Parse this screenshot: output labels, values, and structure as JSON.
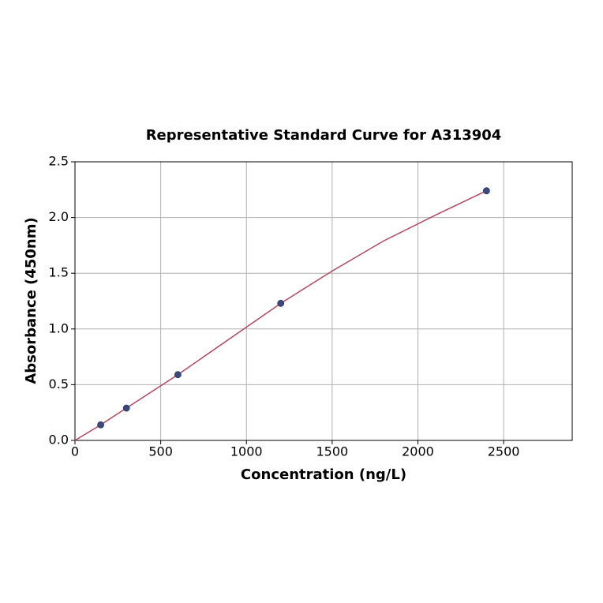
{
  "chart_data": {
    "type": "scatter",
    "title": "Representative Standard Curve for A313904",
    "x_label": "Concentration (ng/L)",
    "y_label": "Absorbance (450nm)",
    "xlim": [
      0,
      2900
    ],
    "ylim": [
      0,
      2.5
    ],
    "xticks": [
      0,
      500,
      1000,
      1500,
      2000,
      2500
    ],
    "yticks": [
      {
        "value": 0,
        "label": "0.0"
      },
      0.5,
      {
        "value": 1,
        "label": "1.0"
      },
      1.5,
      {
        "value": 2,
        "label": "2.0"
      },
      2.5
    ],
    "grid": true,
    "series": [
      {
        "type": "line",
        "color": "#b5455f",
        "x": [
          0,
          150,
          300,
          600,
          900,
          1200,
          1500,
          1800,
          2100,
          2400
        ],
        "values": [
          0.0,
          0.14,
          0.29,
          0.59,
          0.91,
          1.23,
          1.52,
          1.79,
          2.02,
          2.24
        ]
      },
      {
        "type": "scatter",
        "color": "#3b4a7e",
        "x": [
          150,
          300,
          600,
          1200,
          2400
        ],
        "values": [
          0.14,
          0.29,
          0.59,
          1.23,
          2.24
        ]
      }
    ]
  }
}
